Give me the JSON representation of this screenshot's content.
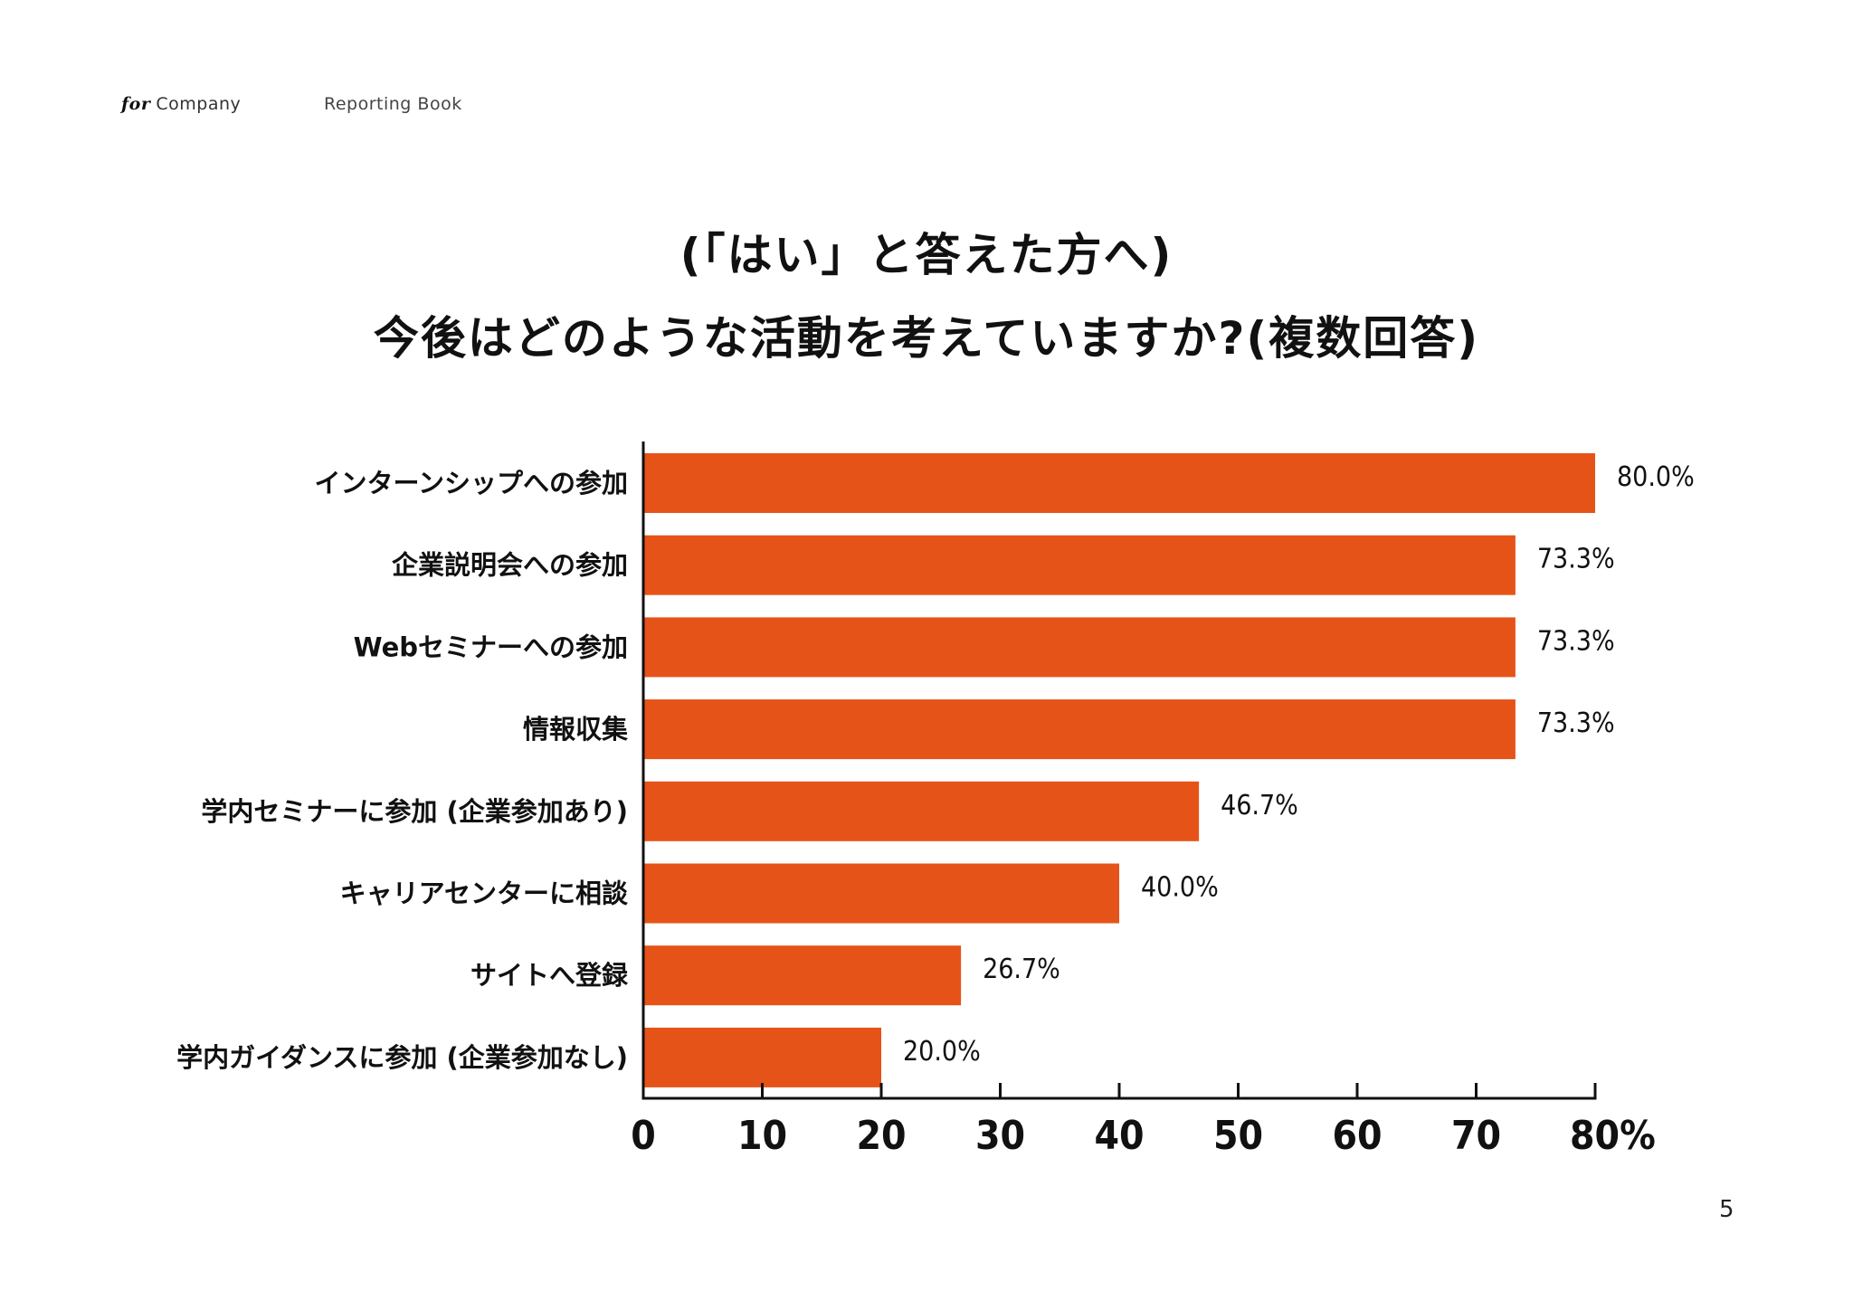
{
  "header": {
    "brand_for": "for",
    "brand_company": "Company",
    "doc_title": "Reporting Book"
  },
  "title": {
    "line1": "(「はい」と答えた方へ)",
    "line2": "今後はどのような活動を考えていますか?(複数回答)"
  },
  "page_number": "5",
  "colors": {
    "bar": "#E65318",
    "axis": "#111111"
  },
  "chart_data": {
    "type": "bar",
    "orientation": "horizontal",
    "title": "(「はい」と答えた方へ) 今後はどのような活動を考えていますか?(複数回答)",
    "categories": [
      "インターンシップへの参加",
      "企業説明会への参加",
      "Webセミナーへの参加",
      "情報収集",
      "学内セミナーに参加 (企業参加あり)",
      "キャリアセンターに相談",
      "サイトへ登録",
      "学内ガイダンスに参加 (企業参加なし)"
    ],
    "values": [
      80.0,
      73.3,
      73.3,
      73.3,
      46.7,
      40.0,
      26.7,
      20.0
    ],
    "value_labels": [
      "80.0%",
      "73.3%",
      "73.3%",
      "73.3%",
      "46.7%",
      "40.0%",
      "26.7%",
      "20.0%"
    ],
    "xlabel": "",
    "ylabel": "",
    "xlim": [
      0,
      80
    ],
    "x_ticks": [
      0,
      10,
      20,
      30,
      40,
      50,
      60,
      70,
      80
    ],
    "x_tick_labels": [
      "0",
      "10",
      "20",
      "30",
      "40",
      "50",
      "60",
      "70",
      "80%"
    ],
    "grid": false,
    "legend": "none"
  }
}
